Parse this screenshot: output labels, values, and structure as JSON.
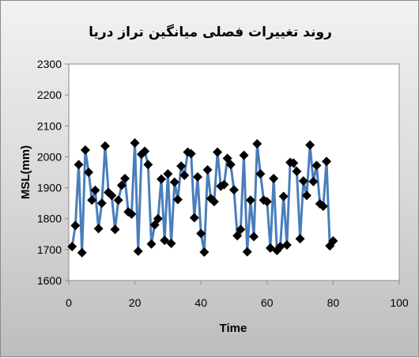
{
  "chart_data": {
    "type": "line",
    "title": "روند تغییرات فصلی میانگین تراز دریا",
    "xlabel": "Time",
    "ylabel": "MSL(mm)",
    "xlim": [
      0,
      100
    ],
    "ylim": [
      1600,
      2300
    ],
    "xticks": [
      0,
      20,
      40,
      60,
      80,
      100
    ],
    "yticks": [
      1600,
      1700,
      1800,
      1900,
      2000,
      2100,
      2200,
      2300
    ],
    "grid": false,
    "legend": "none",
    "line_color": "#4a7ebb",
    "marker": "diamond",
    "marker_color": "#000000",
    "series": [
      {
        "x": [
          1,
          2,
          3,
          4,
          5,
          6,
          7,
          8,
          9,
          10,
          11,
          12,
          13,
          14,
          15,
          16,
          17,
          18,
          19,
          20,
          21,
          22,
          23,
          24,
          25,
          26,
          27,
          28,
          29,
          30,
          31,
          32,
          33,
          34,
          35,
          36,
          37,
          38,
          39,
          40,
          41,
          42,
          43,
          44,
          45,
          46,
          47,
          48,
          49,
          50,
          51,
          52,
          53,
          54,
          55,
          56,
          57,
          58,
          59,
          60,
          61,
          62,
          63,
          64,
          65,
          66,
          67,
          68,
          69,
          70,
          71,
          72,
          73,
          74,
          75,
          76,
          77,
          78,
          79,
          80
        ],
        "y": [
          1710,
          1778,
          1975,
          1690,
          2022,
          1950,
          1860,
          1892,
          1768,
          1850,
          2035,
          1885,
          1875,
          1765,
          1860,
          1908,
          1930,
          1822,
          1815,
          2045,
          1695,
          2008,
          2018,
          1975,
          1718,
          1780,
          1800,
          1928,
          1730,
          1945,
          1720,
          1918,
          1862,
          1970,
          1940,
          2015,
          2010,
          1803,
          1935,
          1752,
          1692,
          1958,
          1865,
          1855,
          2015,
          1905,
          1910,
          1995,
          1975,
          1893,
          1745,
          1765,
          2005,
          1693,
          1860,
          1742,
          2042,
          1945,
          1860,
          1855,
          1705,
          1930,
          1697,
          1710,
          1872,
          1715,
          1982,
          1980,
          1953,
          1735,
          1922,
          1875,
          2038,
          1920,
          1972,
          1848,
          1840,
          1985,
          1712,
          1728
        ]
      }
    ]
  }
}
